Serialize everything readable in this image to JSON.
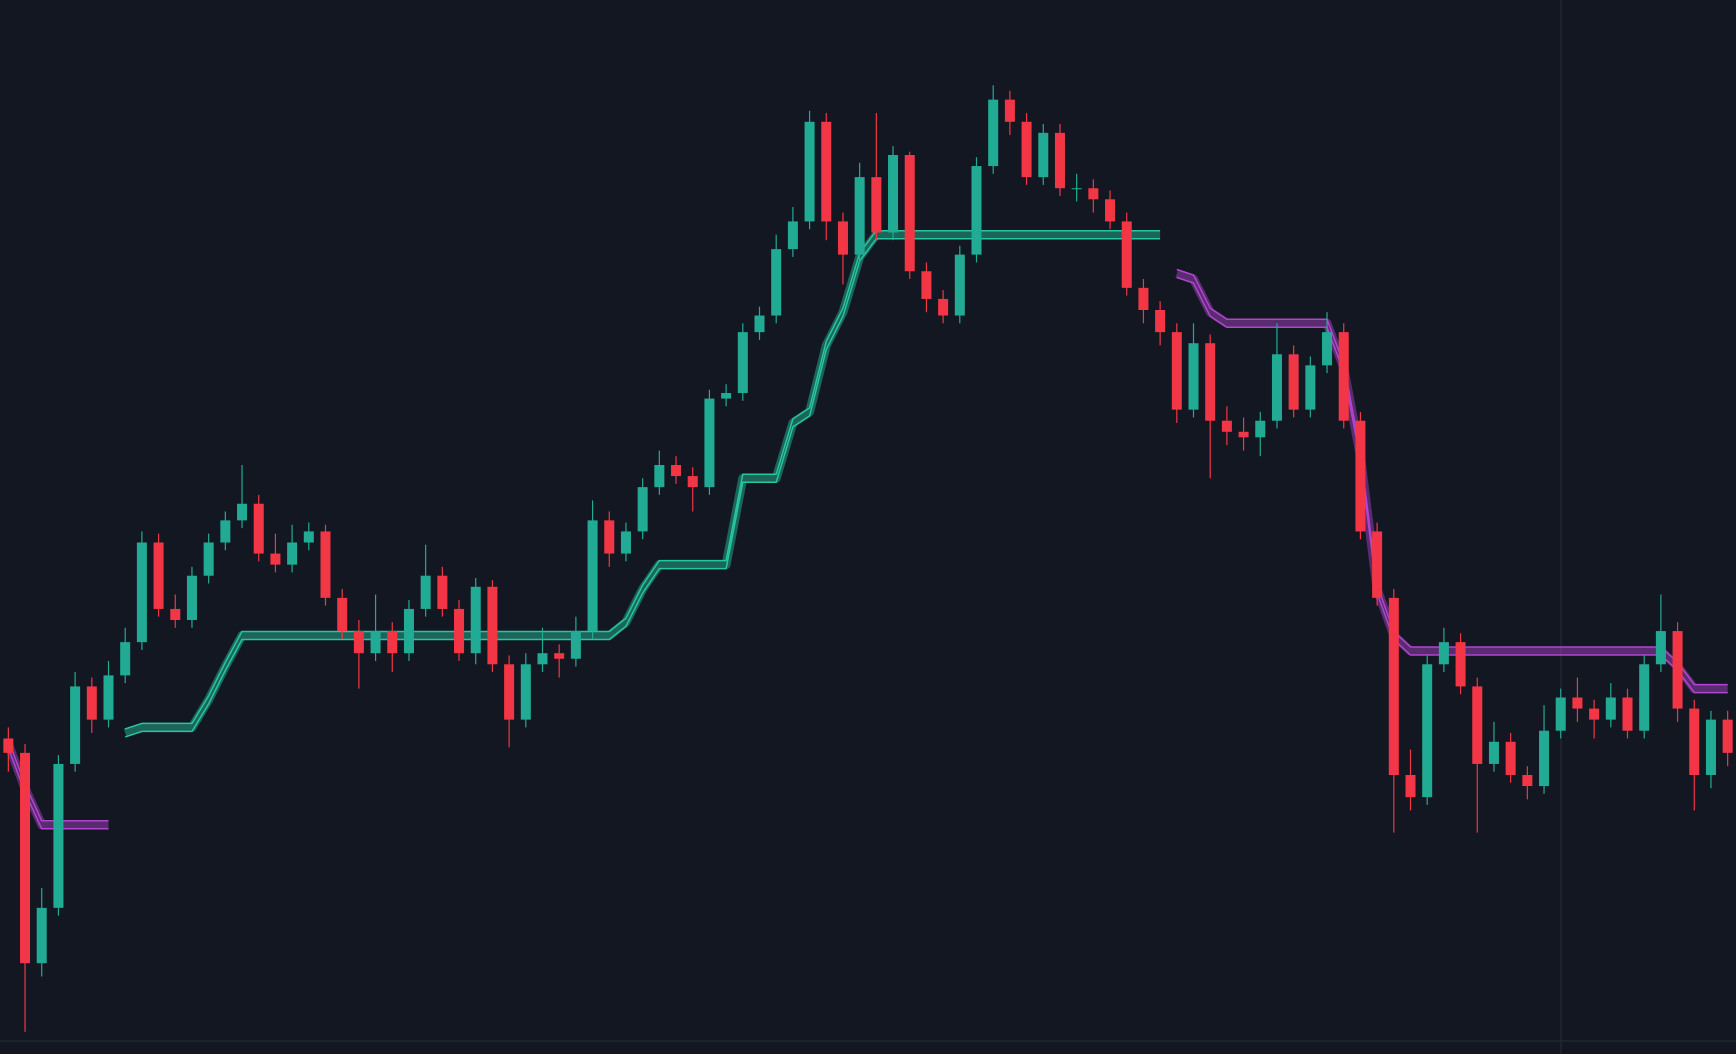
{
  "chart_data": {
    "type": "candlestick",
    "ylim": [
      0,
      952
    ],
    "up_color": "#22ab94",
    "down_color": "#f23645",
    "open": [
      285,
      272,
      82,
      132,
      262,
      332,
      302,
      342,
      372,
      462,
      402,
      392,
      432,
      462,
      482,
      497,
      452,
      442,
      462,
      472,
      412,
      382,
      362,
      382,
      362,
      402,
      432,
      402,
      362,
      422,
      352,
      302,
      352,
      362,
      357,
      382,
      482,
      452,
      472,
      512,
      532,
      522,
      512,
      592,
      597,
      652,
      667,
      727,
      752,
      842,
      752,
      722,
      792,
      742,
      812,
      707,
      682,
      667,
      722,
      802,
      862,
      842,
      792,
      832,
      782,
      782,
      772,
      752,
      692,
      672,
      652,
      582,
      642,
      572,
      562,
      557,
      572,
      632,
      582,
      622,
      652,
      572,
      472,
      412,
      252,
      232,
      352,
      372,
      332,
      262,
      282,
      252,
      242,
      292,
      322,
      312,
      302,
      322,
      292,
      352,
      382,
      312,
      252,
      302
    ],
    "high": [
      295,
      280,
      150,
      270,
      345,
      340,
      355,
      385,
      472,
      470,
      415,
      440,
      470,
      490,
      532,
      505,
      470,
      478,
      480,
      478,
      420,
      392,
      415,
      390,
      410,
      460,
      440,
      410,
      430,
      428,
      360,
      362,
      385,
      370,
      395,
      500,
      490,
      480,
      520,
      545,
      540,
      530,
      600,
      605,
      660,
      675,
      740,
      765,
      852,
      850,
      760,
      805,
      850,
      820,
      815,
      715,
      690,
      730,
      810,
      875,
      870,
      850,
      840,
      840,
      795,
      790,
      780,
      760,
      700,
      680,
      660,
      660,
      650,
      585,
      575,
      580,
      660,
      640,
      630,
      670,
      660,
      580,
      480,
      420,
      275,
      360,
      385,
      380,
      340,
      300,
      290,
      260,
      315,
      330,
      340,
      320,
      335,
      330,
      360,
      415,
      390,
      320,
      310,
      310
    ],
    "low": [
      255,
      20,
      70,
      125,
      255,
      290,
      295,
      335,
      365,
      395,
      385,
      385,
      425,
      455,
      475,
      445,
      435,
      435,
      455,
      405,
      375,
      330,
      355,
      345,
      355,
      395,
      395,
      355,
      352,
      345,
      277,
      295,
      345,
      340,
      350,
      375,
      440,
      445,
      465,
      505,
      515,
      490,
      505,
      585,
      590,
      645,
      660,
      720,
      745,
      735,
      695,
      715,
      735,
      735,
      700,
      670,
      660,
      660,
      715,
      795,
      830,
      785,
      785,
      775,
      770,
      760,
      745,
      685,
      660,
      640,
      570,
      575,
      520,
      550,
      545,
      540,
      565,
      575,
      575,
      615,
      565,
      465,
      405,
      200,
      220,
      225,
      345,
      325,
      200,
      255,
      245,
      230,
      235,
      285,
      300,
      285,
      295,
      285,
      285,
      345,
      300,
      220,
      240,
      260
    ],
    "close": [
      272,
      82,
      132,
      262,
      332,
      302,
      342,
      372,
      462,
      402,
      392,
      432,
      462,
      482,
      497,
      452,
      442,
      462,
      472,
      412,
      382,
      362,
      382,
      362,
      402,
      432,
      402,
      362,
      422,
      352,
      302,
      352,
      362,
      357,
      382,
      482,
      452,
      472,
      512,
      532,
      522,
      512,
      592,
      597,
      652,
      667,
      727,
      752,
      842,
      752,
      722,
      792,
      742,
      812,
      707,
      682,
      667,
      722,
      802,
      862,
      842,
      792,
      832,
      782,
      782,
      772,
      752,
      692,
      672,
      652,
      582,
      642,
      572,
      562,
      557,
      572,
      632,
      582,
      622,
      652,
      572,
      472,
      412,
      252,
      232,
      352,
      372,
      332,
      262,
      282,
      252,
      242,
      292,
      322,
      312,
      302,
      322,
      292,
      352,
      382,
      312,
      252,
      302,
      272
    ],
    "series": [
      {
        "color": "#26c6a0",
        "values": [
          null,
          null,
          null,
          null,
          null,
          null,
          null,
          290,
          295,
          295,
          295,
          295,
          320,
          350,
          378,
          378,
          378,
          378,
          378,
          378,
          378,
          378,
          378,
          378,
          378,
          378,
          378,
          378,
          378,
          378,
          378,
          378,
          378,
          378,
          378,
          378,
          378,
          390,
          420,
          442,
          442,
          442,
          442,
          442,
          520,
          520,
          520,
          570,
          580,
          640,
          670,
          720,
          740,
          740,
          740,
          740,
          740,
          740,
          740,
          740,
          740,
          740,
          740,
          740,
          740,
          740,
          740,
          740,
          740,
          740,
          null,
          null,
          null,
          null,
          null,
          null,
          null,
          null,
          null,
          null,
          null,
          null,
          null,
          null,
          null,
          null,
          null,
          null,
          null,
          null,
          null,
          null,
          null,
          null,
          null,
          null,
          null,
          null,
          null,
          null,
          null,
          null,
          null,
          null
        ]
      },
      {
        "color": "#b045cf",
        "values": [
          280,
          240,
          207,
          207,
          207,
          207,
          207,
          null,
          null,
          null,
          null,
          null,
          null,
          null,
          null,
          null,
          null,
          null,
          null,
          null,
          null,
          null,
          null,
          null,
          null,
          null,
          null,
          null,
          null,
          null,
          null,
          null,
          null,
          null,
          null,
          null,
          null,
          null,
          null,
          null,
          null,
          null,
          null,
          null,
          null,
          null,
          null,
          null,
          null,
          null,
          null,
          null,
          null,
          null,
          null,
          null,
          null,
          null,
          null,
          null,
          null,
          null,
          null,
          null,
          null,
          null,
          null,
          null,
          null,
          null,
          705,
          700,
          670,
          660,
          660,
          660,
          660,
          660,
          660,
          660,
          620,
          540,
          420,
          378,
          364,
          364,
          364,
          364,
          364,
          364,
          364,
          364,
          364,
          364,
          364,
          364,
          364,
          364,
          364,
          364,
          350,
          330,
          330,
          330
        ]
      }
    ]
  }
}
